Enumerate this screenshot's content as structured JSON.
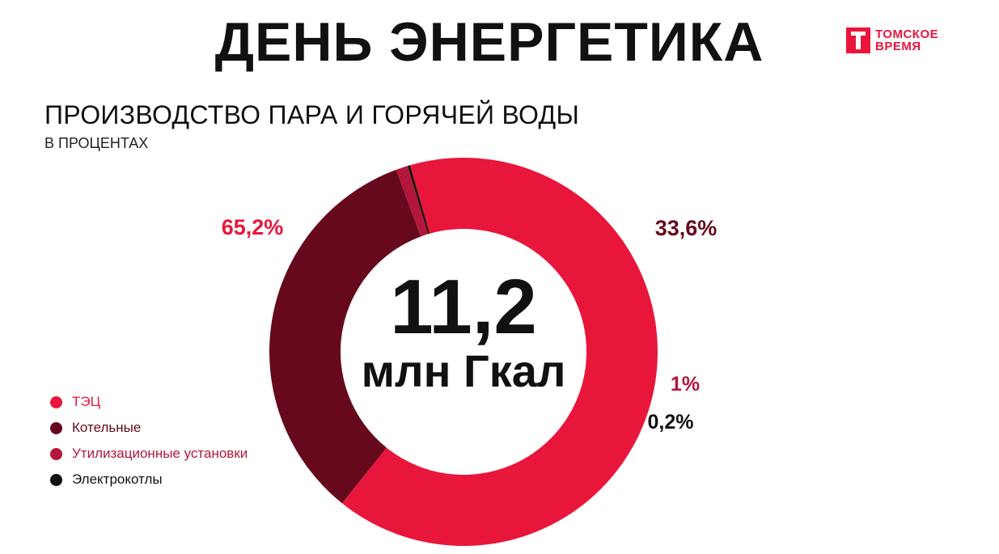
{
  "header": {
    "title": "ДЕНЬ ЭНЕРГЕТИКА"
  },
  "logo": {
    "line1": "ТОМСКОЕ",
    "line2": "ВРЕМЯ",
    "color": "#e8163a"
  },
  "chart_data": {
    "type": "pie",
    "variant": "donut",
    "title": "ПРОИЗВОДСТВО ПАРА И ГОРЯЧЕЙ ВОДЫ",
    "subtitle": "В ПРОЦЕНТАХ",
    "center_value": "11,2",
    "center_unit": "млн Гкал",
    "legend_position": "bottom-left",
    "slices": [
      {
        "name": "ТЭЦ",
        "value": 65.2,
        "label": "65,2%",
        "color": "#e8163a",
        "label_color": "#e8163a"
      },
      {
        "name": "Котельные",
        "value": 33.6,
        "label": "33,6%",
        "color": "#66091c",
        "label_color": "#66091c"
      },
      {
        "name": "Утилизационные установки",
        "value": 1.0,
        "label": "1%",
        "color": "#b3163a",
        "label_color": "#b3163a"
      },
      {
        "name": "Электрокотлы",
        "value": 0.2,
        "label": "0,2%",
        "color": "#111111",
        "label_color": "#111111"
      }
    ]
  }
}
